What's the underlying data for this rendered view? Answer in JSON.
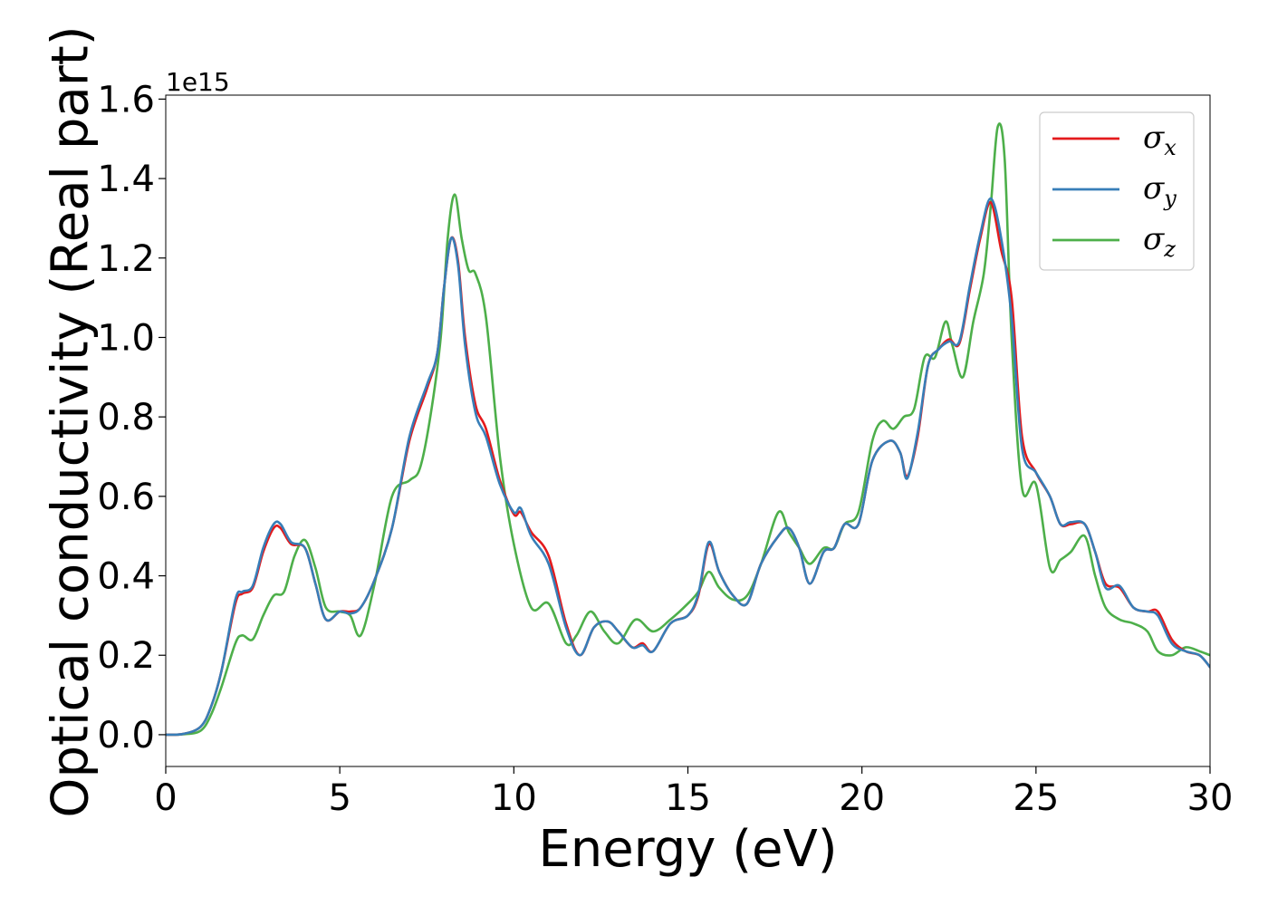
{
  "chart_data": {
    "type": "line",
    "xlabel": "Energy (eV)",
    "ylabel": "Optical conductivity (Real part)",
    "y_offset_label": "1e15",
    "xlim": [
      0,
      30
    ],
    "ylim": [
      -0.08,
      1.61
    ],
    "xticks": [
      0,
      5,
      10,
      15,
      20,
      25,
      30
    ],
    "yticks": [
      0.0,
      0.2,
      0.4,
      0.6,
      0.8,
      1.0,
      1.2,
      1.4,
      1.6
    ],
    "xtick_labels": [
      "0",
      "5",
      "10",
      "15",
      "20",
      "25",
      "30"
    ],
    "ytick_labels": [
      "0.0",
      "0.2",
      "0.4",
      "0.6",
      "0.8",
      "1.0",
      "1.2",
      "1.4",
      "1.6"
    ],
    "grid": false,
    "legend_position": "top-right",
    "series": [
      {
        "name": "σx",
        "symbol": "σ",
        "subscript": "x",
        "color": "#e41a1c",
        "x": [
          0,
          0.5,
          1.0,
          1.3,
          1.6,
          2.0,
          2.2,
          2.5,
          2.8,
          3.1,
          3.3,
          3.6,
          4.0,
          4.3,
          4.6,
          5.0,
          5.3,
          5.6,
          6.0,
          6.5,
          7.0,
          7.5,
          7.8,
          8.0,
          8.2,
          8.4,
          8.6,
          8.9,
          9.2,
          9.6,
          10.0,
          10.2,
          10.5,
          11.0,
          11.5,
          11.9,
          12.3,
          12.7,
          13.0,
          13.4,
          13.7,
          14.0,
          14.5,
          15.0,
          15.3,
          15.6,
          15.9,
          16.3,
          16.7,
          17.1,
          17.6,
          17.9,
          18.2,
          18.5,
          18.9,
          19.2,
          19.5,
          19.9,
          20.3,
          20.8,
          21.1,
          21.3,
          21.6,
          21.9,
          22.2,
          22.5,
          22.8,
          23.1,
          23.4,
          23.7,
          24.0,
          24.3,
          24.6,
          25.0,
          25.4,
          25.7,
          26.0,
          26.4,
          26.7,
          27.0,
          27.4,
          27.8,
          28.2,
          28.5,
          28.9,
          29.3,
          29.7,
          30.0
        ],
        "values": [
          0.0,
          0.002,
          0.02,
          0.07,
          0.16,
          0.33,
          0.355,
          0.37,
          0.46,
          0.52,
          0.52,
          0.48,
          0.47,
          0.38,
          0.29,
          0.31,
          0.31,
          0.32,
          0.39,
          0.52,
          0.74,
          0.87,
          0.96,
          1.13,
          1.25,
          1.19,
          1.0,
          0.83,
          0.77,
          0.64,
          0.555,
          0.56,
          0.51,
          0.45,
          0.28,
          0.2,
          0.27,
          0.285,
          0.26,
          0.22,
          0.23,
          0.21,
          0.28,
          0.3,
          0.35,
          0.48,
          0.41,
          0.35,
          0.33,
          0.43,
          0.5,
          0.52,
          0.47,
          0.38,
          0.46,
          0.47,
          0.53,
          0.53,
          0.69,
          0.74,
          0.71,
          0.65,
          0.75,
          0.93,
          0.97,
          0.995,
          0.985,
          1.12,
          1.25,
          1.34,
          1.22,
          1.1,
          0.75,
          0.66,
          0.6,
          0.53,
          0.53,
          0.53,
          0.46,
          0.38,
          0.37,
          0.32,
          0.31,
          0.31,
          0.24,
          0.21,
          0.2,
          0.17
        ]
      },
      {
        "name": "σy",
        "symbol": "σ",
        "subscript": "y",
        "color": "#377eb8",
        "x": [
          0,
          0.5,
          1.0,
          1.3,
          1.6,
          2.0,
          2.2,
          2.5,
          2.8,
          3.1,
          3.3,
          3.6,
          4.0,
          4.3,
          4.6,
          5.0,
          5.3,
          5.6,
          6.0,
          6.5,
          7.0,
          7.5,
          7.8,
          8.0,
          8.2,
          8.4,
          8.6,
          8.9,
          9.2,
          9.6,
          10.0,
          10.2,
          10.5,
          11.0,
          11.5,
          11.9,
          12.3,
          12.7,
          13.0,
          13.4,
          13.7,
          14.0,
          14.5,
          15.0,
          15.3,
          15.6,
          15.9,
          16.3,
          16.7,
          17.1,
          17.6,
          17.9,
          18.2,
          18.5,
          18.9,
          19.2,
          19.5,
          19.9,
          20.3,
          20.8,
          21.1,
          21.3,
          21.6,
          21.9,
          22.2,
          22.5,
          22.8,
          23.1,
          23.4,
          23.7,
          24.0,
          24.3,
          24.6,
          25.0,
          25.4,
          25.7,
          26.0,
          26.4,
          26.7,
          27.0,
          27.4,
          27.8,
          28.2,
          28.5,
          28.9,
          29.3,
          29.7,
          30.0
        ],
        "values": [
          0.0,
          0.002,
          0.02,
          0.07,
          0.16,
          0.34,
          0.36,
          0.375,
          0.47,
          0.53,
          0.53,
          0.485,
          0.47,
          0.38,
          0.29,
          0.31,
          0.305,
          0.32,
          0.39,
          0.52,
          0.75,
          0.88,
          0.96,
          1.13,
          1.25,
          1.18,
          0.98,
          0.81,
          0.75,
          0.63,
          0.56,
          0.57,
          0.5,
          0.43,
          0.27,
          0.2,
          0.27,
          0.285,
          0.26,
          0.22,
          0.225,
          0.21,
          0.28,
          0.3,
          0.355,
          0.485,
          0.41,
          0.35,
          0.33,
          0.43,
          0.5,
          0.52,
          0.47,
          0.38,
          0.46,
          0.47,
          0.53,
          0.53,
          0.69,
          0.74,
          0.71,
          0.645,
          0.76,
          0.93,
          0.97,
          0.99,
          0.99,
          1.13,
          1.26,
          1.35,
          1.25,
          1.05,
          0.72,
          0.66,
          0.6,
          0.53,
          0.535,
          0.53,
          0.46,
          0.37,
          0.375,
          0.32,
          0.31,
          0.3,
          0.23,
          0.21,
          0.2,
          0.17
        ]
      },
      {
        "name": "σz",
        "symbol": "σ",
        "subscript": "z",
        "color": "#4daf4a",
        "x": [
          0,
          0.5,
          1.0,
          1.3,
          1.6,
          2.0,
          2.2,
          2.5,
          2.8,
          3.1,
          3.4,
          3.7,
          4.0,
          4.3,
          4.6,
          5.0,
          5.3,
          5.6,
          6.0,
          6.5,
          7.0,
          7.3,
          7.6,
          7.9,
          8.1,
          8.3,
          8.5,
          8.7,
          8.9,
          9.2,
          9.6,
          10.0,
          10.5,
          11.0,
          11.5,
          11.8,
          12.2,
          12.6,
          13.0,
          13.5,
          14.0,
          14.5,
          15.0,
          15.3,
          15.6,
          15.9,
          16.3,
          16.7,
          17.1,
          17.6,
          17.9,
          18.2,
          18.5,
          18.9,
          19.2,
          19.5,
          19.9,
          20.3,
          20.6,
          20.9,
          21.2,
          21.5,
          21.8,
          22.1,
          22.4,
          22.6,
          22.9,
          23.2,
          23.5,
          23.7,
          23.9,
          24.1,
          24.3,
          24.6,
          25.0,
          25.4,
          25.7,
          26.0,
          26.4,
          26.7,
          27.0,
          27.4,
          27.8,
          28.2,
          28.5,
          28.9,
          29.3,
          29.7,
          30.0
        ],
        "values": [
          0.0,
          0.001,
          0.01,
          0.05,
          0.12,
          0.23,
          0.25,
          0.24,
          0.3,
          0.35,
          0.36,
          0.45,
          0.49,
          0.42,
          0.32,
          0.31,
          0.3,
          0.25,
          0.38,
          0.6,
          0.64,
          0.67,
          0.8,
          1.0,
          1.25,
          1.36,
          1.25,
          1.17,
          1.16,
          1.05,
          0.7,
          0.48,
          0.32,
          0.33,
          0.23,
          0.25,
          0.31,
          0.26,
          0.23,
          0.29,
          0.26,
          0.29,
          0.33,
          0.36,
          0.41,
          0.37,
          0.34,
          0.35,
          0.43,
          0.56,
          0.51,
          0.47,
          0.43,
          0.47,
          0.47,
          0.53,
          0.56,
          0.74,
          0.79,
          0.77,
          0.8,
          0.82,
          0.95,
          0.95,
          1.04,
          0.98,
          0.9,
          1.04,
          1.16,
          1.33,
          1.53,
          1.45,
          1.0,
          0.62,
          0.63,
          0.42,
          0.44,
          0.46,
          0.5,
          0.4,
          0.32,
          0.29,
          0.28,
          0.26,
          0.21,
          0.2,
          0.22,
          0.21,
          0.2
        ]
      }
    ]
  }
}
